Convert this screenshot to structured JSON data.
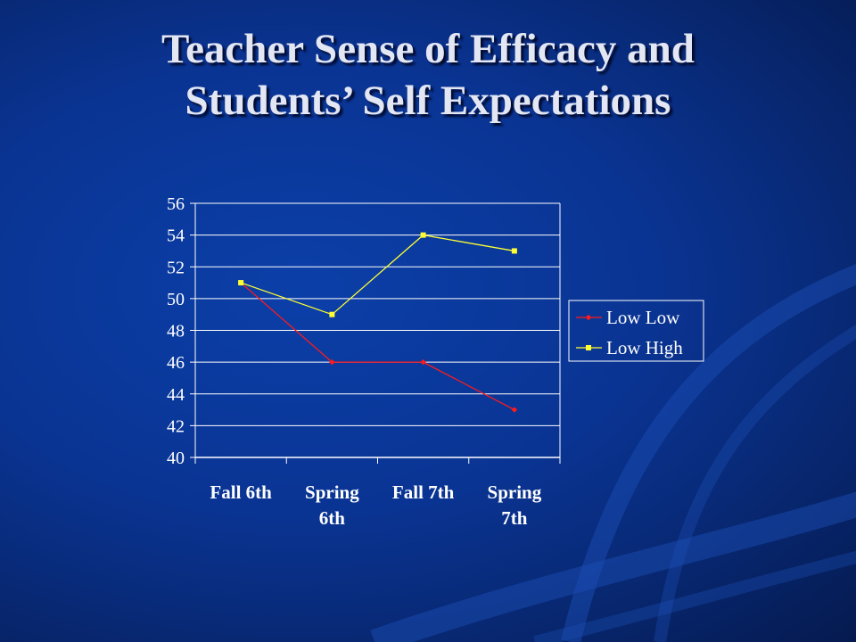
{
  "slide": {
    "title_line1": "Teacher Sense of Efficacy and",
    "title_line2": "Students’ Self Expectations"
  },
  "colors": {
    "background": "#0a3493",
    "grid": "#ffffff",
    "low_low": "#ff1a1a",
    "low_high": "#ffff33"
  },
  "chart_data": {
    "type": "line",
    "categories": [
      [
        "Fall 6th"
      ],
      [
        "Spring",
        "6th"
      ],
      [
        "Fall 7th"
      ],
      [
        "Spring",
        "7th"
      ]
    ],
    "series": [
      {
        "name": "Low Low",
        "values": [
          51,
          46,
          46,
          43
        ],
        "color": "#ff1a1a",
        "marker": "diamond"
      },
      {
        "name": "Low High",
        "values": [
          51,
          49,
          54,
          53
        ],
        "color": "#ffff33",
        "marker": "square"
      }
    ],
    "ylim": [
      40,
      56
    ],
    "yticks": [
      40,
      42,
      44,
      46,
      48,
      50,
      52,
      54,
      56
    ],
    "grid": true,
    "legend": "right",
    "xlabel": "",
    "ylabel": ""
  }
}
